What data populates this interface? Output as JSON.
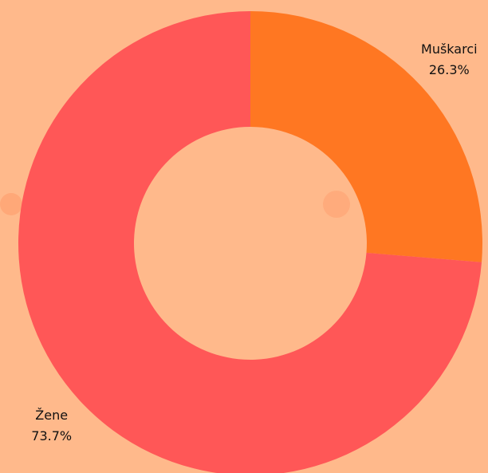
{
  "chart_data": {
    "type": "donut",
    "categories": [
      "Muškarci",
      "Žene"
    ],
    "values": [
      26.3,
      73.7
    ],
    "value_labels": [
      "26.3%",
      "73.7%"
    ],
    "colors": [
      "#ff7722",
      "#ff5757"
    ]
  }
}
